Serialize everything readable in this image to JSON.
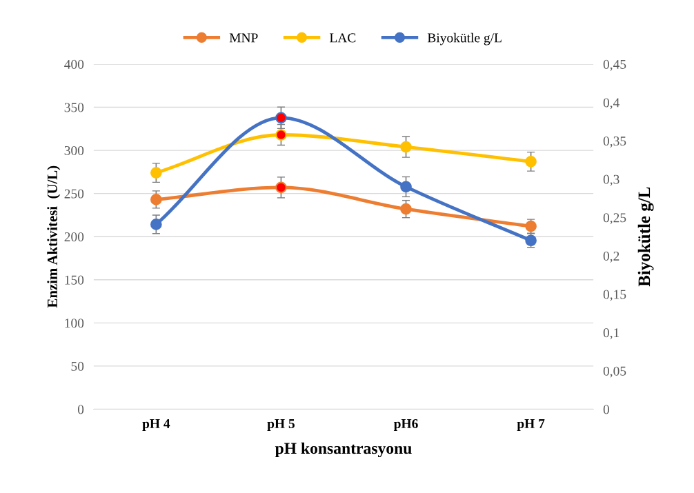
{
  "chart_data": {
    "type": "line",
    "xlabel": "pH konsantrasyonu",
    "ylabel": "Enzim Aktivitesi  (U/L)",
    "y2label": "Biyokütle g/L",
    "categories": [
      "pH 4",
      "pH 5",
      "pH6",
      "pH 7"
    ],
    "series": [
      {
        "name": "MNP",
        "color": "#ed7d31",
        "values": [
          243,
          257,
          232,
          212
        ],
        "errors": [
          10,
          12,
          10,
          8
        ],
        "colors": [
          "#ed7d31",
          "#ff0000",
          "#ed7d31",
          "#ed7d31"
        ]
      },
      {
        "name": "LAC",
        "color": "#ffc000",
        "values": [
          274,
          318,
          304,
          287
        ],
        "errors": [
          11,
          12,
          12,
          11
        ],
        "colors": [
          "#ffc000",
          "#ff0000",
          "#ffc000",
          "#ffc000"
        ]
      },
      {
        "name": "Biyokütle g/L",
        "color": "#4472c4",
        "axis": "y2",
        "values": [
          0.241,
          0.38,
          0.29,
          0.22
        ],
        "errors": [
          0.012,
          0.014,
          0.013,
          0.009
        ],
        "colors": [
          "#4472c4",
          "#ff0000",
          "#4472c4",
          "#4472c4"
        ]
      }
    ],
    "ylim": [
      0,
      400
    ],
    "yticks": [
      0,
      50,
      100,
      150,
      200,
      250,
      300,
      350,
      400
    ],
    "y2lim": [
      0,
      0.45
    ],
    "y2ticks": [
      0,
      {
        "value": 0.05,
        "label": "0,05"
      },
      {
        "value": 0.1,
        "label": "0,1"
      },
      {
        "value": 0.15,
        "label": "0,15"
      },
      {
        "value": 0.2,
        "label": "0,2"
      },
      {
        "value": 0.25,
        "label": "0,25"
      },
      {
        "value": 0.3,
        "label": "0,3"
      },
      {
        "value": 0.35,
        "label": "0,35"
      },
      {
        "value": 0.4,
        "label": "0,4"
      },
      {
        "value": 0.45,
        "label": "0,45"
      }
    ],
    "grid": "y",
    "legend": "top",
    "marker": "circle",
    "line_style": "solid"
  }
}
